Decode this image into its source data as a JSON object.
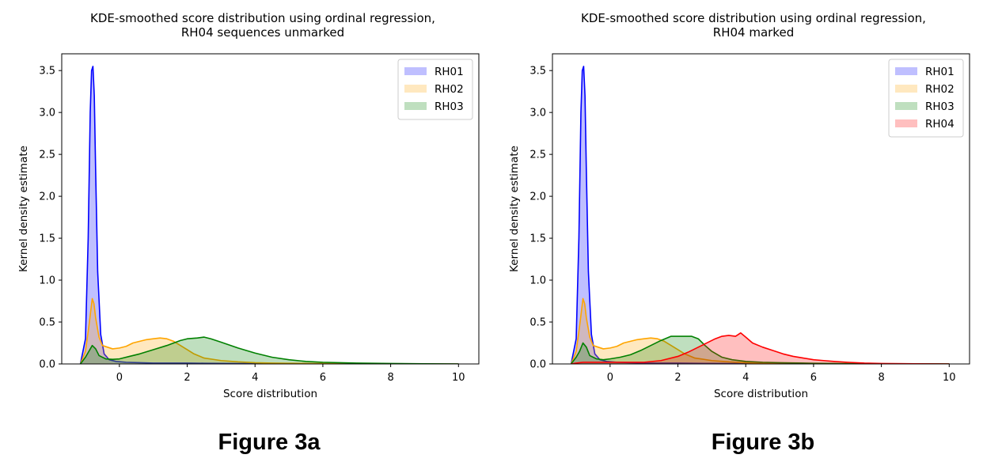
{
  "chart_data": [
    {
      "type": "area",
      "caption": "Figure 3a",
      "title": [
        "KDE-smoothed score distribution using ordinal regression,",
        "RH04 sequences unmarked"
      ],
      "xlabel": "Score distribution",
      "ylabel": "Kernel density estimate",
      "xlim": [
        -1.7,
        10.6
      ],
      "ylim": [
        0,
        3.7
      ],
      "xticks": [
        0,
        2,
        4,
        6,
        8,
        10
      ],
      "yticks": [
        0.0,
        0.5,
        1.0,
        1.5,
        2.0,
        2.5,
        3.0,
        3.5
      ],
      "grid": false,
      "legend_position": "top-right",
      "series": [
        {
          "name": "RH01",
          "color": "#0000ff",
          "x": [
            -1.15,
            -1.0,
            -0.92,
            -0.86,
            -0.82,
            -0.78,
            -0.74,
            -0.7,
            -0.64,
            -0.55,
            -0.45,
            -0.3,
            -0.1,
            0.2,
            0.6,
            1.0,
            1.5,
            2.0,
            2.5,
            3.0,
            3.5,
            4.0,
            5.0,
            6.0,
            8.0,
            10.0
          ],
          "y": [
            0.0,
            0.3,
            1.5,
            3.0,
            3.5,
            3.55,
            3.2,
            2.3,
            1.1,
            0.35,
            0.12,
            0.05,
            0.03,
            0.02,
            0.015,
            0.01,
            0.01,
            0.01,
            0.008,
            0.006,
            0.005,
            0.004,
            0.003,
            0.002,
            0.001,
            0.0
          ]
        },
        {
          "name": "RH02",
          "color": "#ffa500",
          "x": [
            -1.15,
            -1.0,
            -0.9,
            -0.8,
            -0.75,
            -0.7,
            -0.6,
            -0.5,
            -0.35,
            -0.2,
            0.0,
            0.2,
            0.4,
            0.6,
            0.8,
            1.0,
            1.2,
            1.4,
            1.6,
            1.8,
            2.0,
            2.2,
            2.5,
            3.0,
            3.5,
            4.0,
            4.5,
            5.0,
            6.0,
            7.0,
            8.0,
            10.0
          ],
          "y": [
            0.0,
            0.15,
            0.45,
            0.78,
            0.72,
            0.55,
            0.32,
            0.22,
            0.2,
            0.18,
            0.19,
            0.21,
            0.25,
            0.27,
            0.29,
            0.3,
            0.31,
            0.3,
            0.27,
            0.22,
            0.17,
            0.12,
            0.07,
            0.04,
            0.025,
            0.015,
            0.01,
            0.008,
            0.005,
            0.003,
            0.001,
            0.0
          ]
        },
        {
          "name": "RH03",
          "color": "#008000",
          "x": [
            -1.15,
            -1.0,
            -0.9,
            -0.8,
            -0.7,
            -0.6,
            -0.4,
            -0.2,
            0.0,
            0.3,
            0.6,
            1.0,
            1.4,
            1.8,
            2.0,
            2.3,
            2.5,
            2.7,
            3.0,
            3.5,
            4.0,
            4.5,
            5.0,
            5.5,
            6.0,
            7.0,
            8.0,
            9.0,
            10.0
          ],
          "y": [
            0.0,
            0.08,
            0.15,
            0.22,
            0.18,
            0.1,
            0.06,
            0.055,
            0.06,
            0.09,
            0.12,
            0.17,
            0.22,
            0.28,
            0.3,
            0.31,
            0.32,
            0.3,
            0.26,
            0.19,
            0.13,
            0.08,
            0.05,
            0.03,
            0.02,
            0.01,
            0.005,
            0.002,
            0.0
          ]
        }
      ]
    },
    {
      "type": "area",
      "caption": "Figure 3b",
      "title": [
        "KDE-smoothed score distribution using ordinal regression,",
        "RH04 marked"
      ],
      "xlabel": "Score distribution",
      "ylabel": "Kernel density estimate",
      "xlim": [
        -1.7,
        10.6
      ],
      "ylim": [
        0,
        3.7
      ],
      "xticks": [
        0,
        2,
        4,
        6,
        8,
        10
      ],
      "yticks": [
        0.0,
        0.5,
        1.0,
        1.5,
        2.0,
        2.5,
        3.0,
        3.5
      ],
      "grid": false,
      "legend_position": "top-right",
      "series": [
        {
          "name": "RH01",
          "color": "#0000ff",
          "x": [
            -1.15,
            -1.0,
            -0.92,
            -0.86,
            -0.82,
            -0.78,
            -0.74,
            -0.7,
            -0.64,
            -0.55,
            -0.45,
            -0.3,
            -0.1,
            0.2,
            0.6,
            1.0,
            1.5,
            2.0,
            2.5,
            3.0,
            3.5,
            4.0,
            5.0,
            6.0,
            8.0,
            10.0
          ],
          "y": [
            0.0,
            0.3,
            1.5,
            3.0,
            3.5,
            3.55,
            3.2,
            2.3,
            1.1,
            0.35,
            0.12,
            0.05,
            0.03,
            0.02,
            0.015,
            0.01,
            0.01,
            0.01,
            0.008,
            0.006,
            0.005,
            0.004,
            0.003,
            0.002,
            0.001,
            0.0
          ]
        },
        {
          "name": "RH02",
          "color": "#ffa500",
          "x": [
            -1.15,
            -1.0,
            -0.9,
            -0.8,
            -0.75,
            -0.7,
            -0.6,
            -0.5,
            -0.35,
            -0.2,
            0.0,
            0.2,
            0.4,
            0.6,
            0.8,
            1.0,
            1.2,
            1.4,
            1.6,
            1.8,
            2.0,
            2.2,
            2.5,
            3.0,
            3.5,
            4.0,
            4.5,
            5.0,
            6.0,
            7.0,
            8.0,
            10.0
          ],
          "y": [
            0.0,
            0.15,
            0.45,
            0.78,
            0.72,
            0.55,
            0.32,
            0.22,
            0.2,
            0.18,
            0.19,
            0.21,
            0.25,
            0.27,
            0.29,
            0.3,
            0.31,
            0.3,
            0.27,
            0.22,
            0.17,
            0.12,
            0.07,
            0.04,
            0.025,
            0.015,
            0.01,
            0.008,
            0.005,
            0.003,
            0.001,
            0.0
          ]
        },
        {
          "name": "RH03",
          "color": "#008000",
          "x": [
            -1.15,
            -1.0,
            -0.9,
            -0.8,
            -0.7,
            -0.6,
            -0.4,
            -0.2,
            0.0,
            0.3,
            0.6,
            0.9,
            1.2,
            1.5,
            1.8,
            2.1,
            2.4,
            2.6,
            2.8,
            3.0,
            3.3,
            3.6,
            4.0,
            4.5,
            5.0,
            6.0,
            7.0,
            8.0,
            10.0
          ],
          "y": [
            0.0,
            0.08,
            0.15,
            0.25,
            0.2,
            0.1,
            0.06,
            0.05,
            0.06,
            0.08,
            0.11,
            0.16,
            0.22,
            0.28,
            0.33,
            0.33,
            0.33,
            0.3,
            0.22,
            0.15,
            0.08,
            0.05,
            0.03,
            0.02,
            0.015,
            0.008,
            0.004,
            0.002,
            0.0
          ]
        },
        {
          "name": "RH04",
          "color": "#ff0000",
          "x": [
            -1.15,
            -1.0,
            -0.8,
            -0.5,
            0.0,
            0.5,
            1.0,
            1.5,
            2.0,
            2.3,
            2.6,
            2.9,
            3.1,
            3.3,
            3.5,
            3.7,
            3.85,
            4.0,
            4.2,
            4.5,
            4.8,
            5.1,
            5.4,
            5.7,
            6.0,
            6.3,
            6.6,
            7.0,
            7.5,
            8.0,
            9.0,
            10.0
          ],
          "y": [
            0.0,
            0.01,
            0.02,
            0.02,
            0.02,
            0.02,
            0.02,
            0.04,
            0.09,
            0.14,
            0.2,
            0.26,
            0.3,
            0.33,
            0.34,
            0.33,
            0.37,
            0.32,
            0.25,
            0.2,
            0.16,
            0.12,
            0.09,
            0.07,
            0.05,
            0.04,
            0.03,
            0.02,
            0.01,
            0.005,
            0.002,
            0.0
          ]
        }
      ]
    }
  ]
}
